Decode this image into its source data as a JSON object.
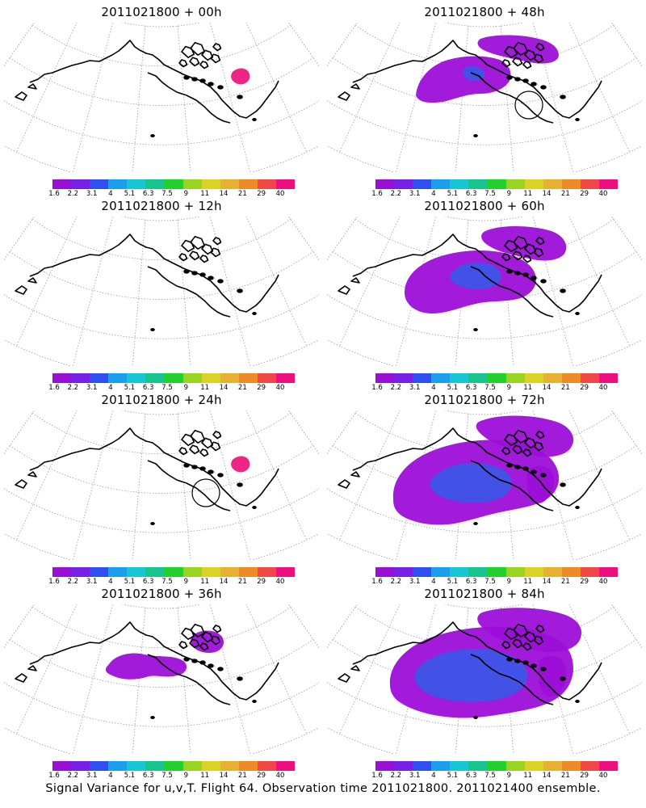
{
  "caption": "Signal Variance for u,v,T. Flight 64. Observation time 2011021800. 2011021400 ensemble.",
  "colorbar": {
    "ticks": [
      "1.6",
      "2.2",
      "3.1",
      "4",
      "5.1",
      "6.3",
      "7.5",
      "9",
      "11",
      "14",
      "21",
      "29",
      "40"
    ],
    "colors": [
      "#9a0fd6",
      "#7a20e6",
      "#2f50ef",
      "#1a9fef",
      "#14c6d6",
      "#19c58e",
      "#21d12a",
      "#9ad41f",
      "#dbd322",
      "#e6b12c",
      "#ed8a25",
      "#f24745",
      "#ee0f7e"
    ]
  },
  "colors": {
    "coast": "#000000",
    "grid": "#9a9a9a",
    "purple": "#9d0fd8",
    "blue": "#3d55e8",
    "magenta": "#ec1a7e"
  },
  "panels": [
    {
      "title": "2011021800 + 00h",
      "level": "trace",
      "circle": false
    },
    {
      "title": "2011021800 + 48h",
      "level": "low",
      "circle": true
    },
    {
      "title": "2011021800 + 12h",
      "level": "none",
      "circle": false
    },
    {
      "title": "2011021800 + 60h",
      "level": "medium",
      "circle": false
    },
    {
      "title": "2011021800 + 24h",
      "level": "trace",
      "circle": true
    },
    {
      "title": "2011021800 + 72h",
      "level": "high",
      "circle": false
    },
    {
      "title": "2011021800 + 36h",
      "level": "small",
      "circle": false
    },
    {
      "title": "2011021800 + 84h",
      "level": "highest",
      "circle": false
    }
  ]
}
